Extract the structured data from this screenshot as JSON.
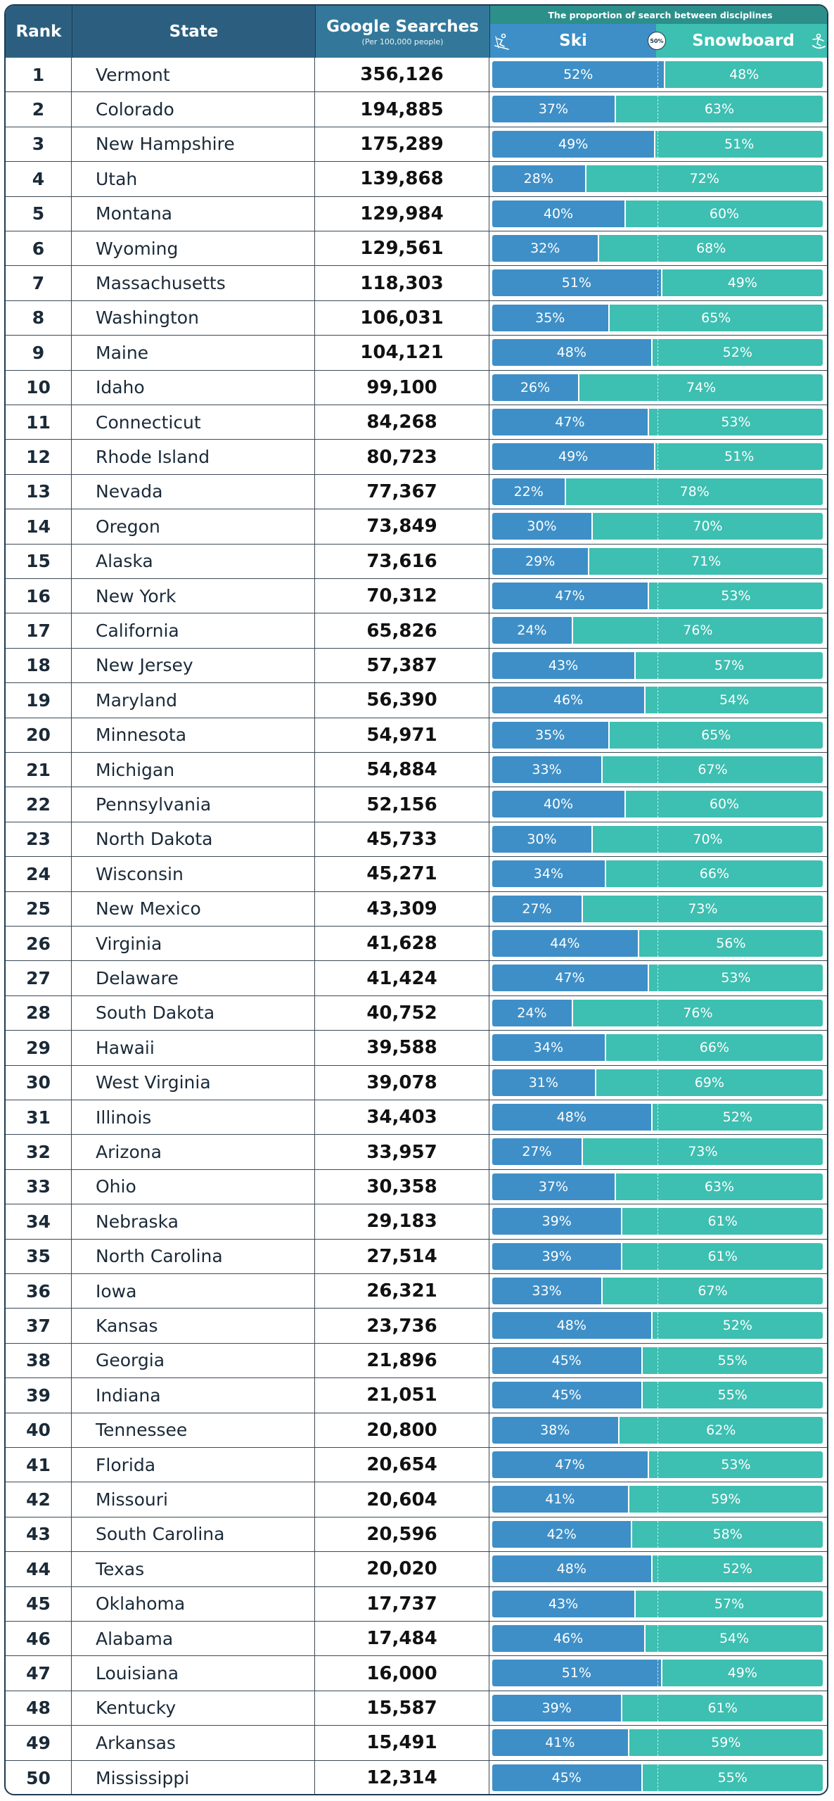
{
  "header": {
    "rank": "Rank",
    "state": "State",
    "searches": "Google Searches",
    "searches_sub": "(Per 100,000 people)",
    "proportion": "The proportion of search between disciplines",
    "ski": "Ski",
    "snowboard": "Snowboard",
    "mid_badge": "50%"
  },
  "colors": {
    "ski": "#3e8fc7",
    "snowboard": "#3dbfb1",
    "header_dark": "#2c5f7f"
  },
  "icons": {
    "ski": "skier-icon",
    "snowboard": "snowboarder-icon"
  },
  "chart_data": {
    "type": "table",
    "title": "",
    "columns": [
      "Rank",
      "State",
      "Google Searches",
      "Ski",
      "Snowboard"
    ],
    "rows": [
      {
        "rank": "1",
        "state": "Vermont",
        "searches": "356,126",
        "ski": 52,
        "snow": 48
      },
      {
        "rank": "2",
        "state": "Colorado",
        "searches": "194,885",
        "ski": 37,
        "snow": 63
      },
      {
        "rank": "3",
        "state": "New Hampshire",
        "searches": "175,289",
        "ski": 49,
        "snow": 51
      },
      {
        "rank": "4",
        "state": "Utah",
        "searches": "139,868",
        "ski": 28,
        "snow": 72
      },
      {
        "rank": "5",
        "state": "Montana",
        "searches": "129,984",
        "ski": 40,
        "snow": 60
      },
      {
        "rank": "6",
        "state": "Wyoming",
        "searches": "129,561",
        "ski": 32,
        "snow": 68
      },
      {
        "rank": "7",
        "state": "Massachusetts",
        "searches": "118,303",
        "ski": 51,
        "snow": 49
      },
      {
        "rank": "8",
        "state": "Washington",
        "searches": "106,031",
        "ski": 35,
        "snow": 65
      },
      {
        "rank": "9",
        "state": "Maine",
        "searches": "104,121",
        "ski": 48,
        "snow": 52
      },
      {
        "rank": "10",
        "state": "Idaho",
        "searches": "99,100",
        "ski": 26,
        "snow": 74
      },
      {
        "rank": "11",
        "state": "Connecticut",
        "searches": "84,268",
        "ski": 47,
        "snow": 53
      },
      {
        "rank": "12",
        "state": "Rhode Island",
        "searches": "80,723",
        "ski": 49,
        "snow": 51
      },
      {
        "rank": "13",
        "state": "Nevada",
        "searches": "77,367",
        "ski": 22,
        "snow": 78
      },
      {
        "rank": "14",
        "state": "Oregon",
        "searches": "73,849",
        "ski": 30,
        "snow": 70
      },
      {
        "rank": "15",
        "state": "Alaska",
        "searches": "73,616",
        "ski": 29,
        "snow": 71
      },
      {
        "rank": "16",
        "state": "New York",
        "searches": "70,312",
        "ski": 47,
        "snow": 53
      },
      {
        "rank": "17",
        "state": "California",
        "searches": "65,826",
        "ski": 24,
        "snow": 76
      },
      {
        "rank": "18",
        "state": "New Jersey",
        "searches": "57,387",
        "ski": 43,
        "snow": 57
      },
      {
        "rank": "19",
        "state": "Maryland",
        "searches": "56,390",
        "ski": 46,
        "snow": 54
      },
      {
        "rank": "20",
        "state": "Minnesota",
        "searches": "54,971",
        "ski": 35,
        "snow": 65
      },
      {
        "rank": "21",
        "state": "Michigan",
        "searches": "54,884",
        "ski": 33,
        "snow": 67
      },
      {
        "rank": "22",
        "state": "Pennsylvania",
        "searches": "52,156",
        "ski": 40,
        "snow": 60
      },
      {
        "rank": "23",
        "state": "North Dakota",
        "searches": "45,733",
        "ski": 30,
        "snow": 70
      },
      {
        "rank": "24",
        "state": "Wisconsin",
        "searches": "45,271",
        "ski": 34,
        "snow": 66
      },
      {
        "rank": "25",
        "state": "New Mexico",
        "searches": "43,309",
        "ski": 27,
        "snow": 73
      },
      {
        "rank": "26",
        "state": "Virginia",
        "searches": "41,628",
        "ski": 44,
        "snow": 56
      },
      {
        "rank": "27",
        "state": "Delaware",
        "searches": "41,424",
        "ski": 47,
        "snow": 53
      },
      {
        "rank": "28",
        "state": "South Dakota",
        "searches": "40,752",
        "ski": 24,
        "snow": 76
      },
      {
        "rank": "29",
        "state": "Hawaii",
        "searches": "39,588",
        "ski": 34,
        "snow": 66
      },
      {
        "rank": "30",
        "state": "West Virginia",
        "searches": "39,078",
        "ski": 31,
        "snow": 69
      },
      {
        "rank": "31",
        "state": "Illinois",
        "searches": "34,403",
        "ski": 48,
        "snow": 52
      },
      {
        "rank": "32",
        "state": "Arizona",
        "searches": "33,957",
        "ski": 27,
        "snow": 73
      },
      {
        "rank": "33",
        "state": "Ohio",
        "searches": "30,358",
        "ski": 37,
        "snow": 63
      },
      {
        "rank": "34",
        "state": "Nebraska",
        "searches": "29,183",
        "ski": 39,
        "snow": 61
      },
      {
        "rank": "35",
        "state": "North Carolina",
        "searches": "27,514",
        "ski": 39,
        "snow": 61
      },
      {
        "rank": "36",
        "state": "Iowa",
        "searches": "26,321",
        "ski": 33,
        "snow": 67
      },
      {
        "rank": "37",
        "state": "Kansas",
        "searches": "23,736",
        "ski": 48,
        "snow": 52
      },
      {
        "rank": "38",
        "state": "Georgia",
        "searches": "21,896",
        "ski": 45,
        "snow": 55
      },
      {
        "rank": "39",
        "state": "Indiana",
        "searches": "21,051",
        "ski": 45,
        "snow": 55
      },
      {
        "rank": "40",
        "state": "Tennessee",
        "searches": "20,800",
        "ski": 38,
        "snow": 62
      },
      {
        "rank": "41",
        "state": "Florida",
        "searches": "20,654",
        "ski": 47,
        "snow": 53
      },
      {
        "rank": "42",
        "state": "Missouri",
        "searches": "20,604",
        "ski": 41,
        "snow": 59
      },
      {
        "rank": "43",
        "state": "South Carolina",
        "searches": "20,596",
        "ski": 42,
        "snow": 58
      },
      {
        "rank": "44",
        "state": "Texas",
        "searches": "20,020",
        "ski": 48,
        "snow": 52
      },
      {
        "rank": "45",
        "state": "Oklahoma",
        "searches": "17,737",
        "ski": 43,
        "snow": 57
      },
      {
        "rank": "46",
        "state": "Alabama",
        "searches": "17,484",
        "ski": 46,
        "snow": 54
      },
      {
        "rank": "47",
        "state": "Louisiana",
        "searches": "16,000",
        "ski": 51,
        "snow": 49
      },
      {
        "rank": "48",
        "state": "Kentucky",
        "searches": "15,587",
        "ski": 39,
        "snow": 61
      },
      {
        "rank": "49",
        "state": "Arkansas",
        "searches": "15,491",
        "ski": 41,
        "snow": 59
      },
      {
        "rank": "50",
        "state": "Mississippi",
        "searches": "12,314",
        "ski": 45,
        "snow": 55
      }
    ]
  }
}
